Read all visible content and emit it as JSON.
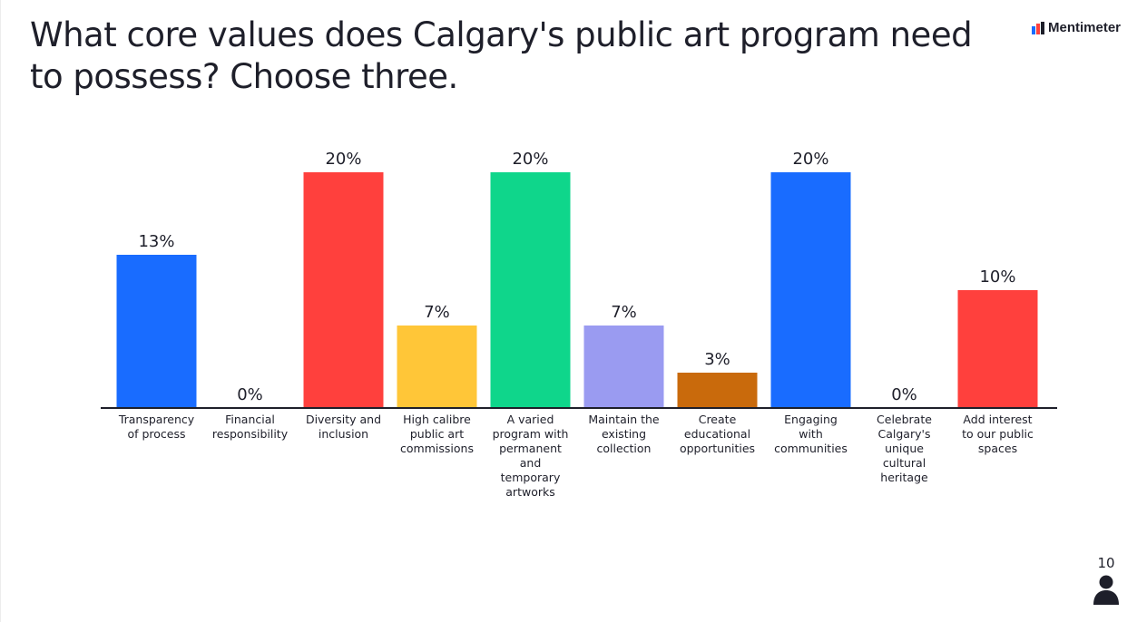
{
  "header": {
    "title": "What core values does Calgary's public art program need to possess? Choose three.",
    "brand": "Mentimeter",
    "brand_icon": "mentimeter-logo-icon"
  },
  "footer": {
    "responses": "10",
    "responses_icon": "person-icon"
  },
  "chart_data": {
    "type": "bar",
    "title": "What core values does Calgary's public art program need to possess? Choose three.",
    "xlabel": "",
    "ylabel": "",
    "grid": false,
    "legend": "none",
    "categories": [
      [
        "Transparency",
        "of process"
      ],
      [
        "Financial",
        "responsibility"
      ],
      [
        "Diversity and",
        "inclusion"
      ],
      [
        "High calibre",
        "public art",
        "commissions"
      ],
      [
        "A varied",
        "program with",
        "permanent",
        "and",
        "temporary",
        "artworks"
      ],
      [
        "Maintain the",
        "existing",
        "collection"
      ],
      [
        "Create",
        "educational",
        "opportunities"
      ],
      [
        "Engaging",
        "with",
        "communities"
      ],
      [
        "Celebrate",
        "Calgary's",
        "unique",
        "cultural",
        "heritage"
      ],
      [
        "Add interest",
        "to our public",
        "spaces"
      ]
    ],
    "values": [
      13,
      0,
      20,
      7,
      20,
      7,
      3,
      20,
      0,
      10
    ],
    "value_labels": [
      "13%",
      "0%",
      "20%",
      "7%",
      "20%",
      "7%",
      "3%",
      "20%",
      "0%",
      "10%"
    ],
    "colors": [
      "#196cff",
      "#196cff",
      "#ff403d",
      "#ffc638",
      "#0fd68b",
      "#9a9bf1",
      "#c96a0c",
      "#196cff",
      "#196cff",
      "#ff403d"
    ],
    "ylim": [
      0,
      20
    ]
  }
}
